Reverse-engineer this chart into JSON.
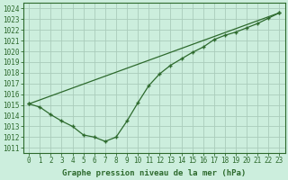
{
  "line1_x": [
    0,
    23
  ],
  "line1_y": [
    1015.1,
    1023.6
  ],
  "line2_x": [
    0,
    1,
    2,
    3,
    4,
    5,
    6,
    7,
    8,
    9,
    10,
    11,
    12,
    13,
    14,
    15,
    16,
    17,
    18,
    19,
    20,
    21,
    22,
    23
  ],
  "line2_y": [
    1015.1,
    1014.8,
    1014.1,
    1013.5,
    1013.0,
    1012.2,
    1012.0,
    1011.6,
    1012.0,
    1013.5,
    1015.2,
    1016.8,
    1017.9,
    1018.7,
    1019.3,
    1019.9,
    1020.4,
    1021.1,
    1021.5,
    1021.8,
    1022.2,
    1022.6,
    1023.1,
    1023.6
  ],
  "line_color": "#2d6a2d",
  "marker": "+",
  "bg_color": "#cceedd",
  "grid_color": "#aaccbb",
  "xlabel": "Graphe pression niveau de la mer (hPa)",
  "ylim": [
    1010.5,
    1024.5
  ],
  "xlim": [
    -0.5,
    23.5
  ],
  "yticks": [
    1011,
    1012,
    1013,
    1014,
    1015,
    1016,
    1017,
    1018,
    1019,
    1020,
    1021,
    1022,
    1023,
    1024
  ],
  "xticks": [
    0,
    1,
    2,
    3,
    4,
    5,
    6,
    7,
    8,
    9,
    10,
    11,
    12,
    13,
    14,
    15,
    16,
    17,
    18,
    19,
    20,
    21,
    22,
    23
  ]
}
